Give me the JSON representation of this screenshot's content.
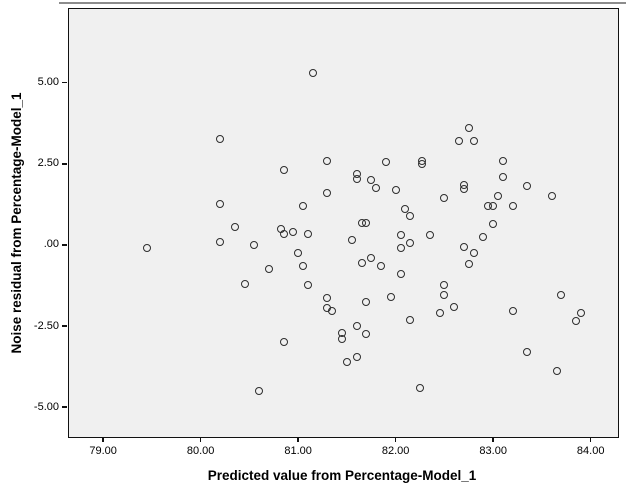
{
  "figure": {
    "background": "#ffffff",
    "plot_background": "#f0f0f0",
    "frame_color": "#111111",
    "point_color": "#2e2e2e",
    "top_rule_color": "#8c8c8c"
  },
  "chart_data": {
    "type": "scatter",
    "title": "",
    "xlabel": "Predicted value from Percentage-Model_1",
    "ylabel": "Noise residual from Percentage-Model_1",
    "xlim": [
      78.65,
      84.28
    ],
    "ylim": [
      -5.92,
      7.27
    ],
    "grid": false,
    "legend": null,
    "marker": "open-circle",
    "x_ticks": [
      {
        "value": 79,
        "label": "79.00"
      },
      {
        "value": 80,
        "label": "80.00"
      },
      {
        "value": 81,
        "label": "81.00"
      },
      {
        "value": 82,
        "label": "82.00"
      },
      {
        "value": 83,
        "label": "83.00"
      },
      {
        "value": 84,
        "label": "84.00"
      }
    ],
    "y_ticks": [
      {
        "value": 5,
        "label": "5.00"
      },
      {
        "value": 2.5,
        "label": "2.50"
      },
      {
        "value": 0,
        "label": ".00"
      },
      {
        "value": -2.5,
        "label": "-2.50"
      },
      {
        "value": -5,
        "label": "-5.00"
      }
    ],
    "points": [
      [
        81.15,
        5.3
      ],
      [
        80.2,
        3.25
      ],
      [
        82.75,
        3.6
      ],
      [
        82.65,
        3.2
      ],
      [
        82.8,
        3.2
      ],
      [
        80.85,
        2.3
      ],
      [
        81.3,
        2.6
      ],
      [
        81.9,
        2.55
      ],
      [
        82.27,
        2.6
      ],
      [
        82.27,
        2.48
      ],
      [
        83.1,
        2.6
      ],
      [
        81.6,
        2.18
      ],
      [
        81.6,
        2.02
      ],
      [
        81.75,
        2.0
      ],
      [
        81.8,
        1.75
      ],
      [
        82.0,
        1.7
      ],
      [
        83.1,
        2.1
      ],
      [
        82.7,
        1.85
      ],
      [
        82.7,
        1.73
      ],
      [
        83.35,
        1.8
      ],
      [
        82.5,
        1.45
      ],
      [
        83.05,
        1.52
      ],
      [
        83.6,
        1.5
      ],
      [
        81.3,
        1.6
      ],
      [
        80.2,
        1.26
      ],
      [
        81.05,
        1.2
      ],
      [
        82.95,
        1.2
      ],
      [
        83.0,
        1.2
      ],
      [
        83.2,
        1.2
      ],
      [
        82.1,
        1.1
      ],
      [
        82.15,
        0.9
      ],
      [
        83.0,
        0.65
      ],
      [
        80.35,
        0.55
      ],
      [
        80.2,
        0.1
      ],
      [
        80.55,
        0.0
      ],
      [
        80.82,
        0.5
      ],
      [
        80.85,
        0.35
      ],
      [
        80.95,
        0.4
      ],
      [
        81.1,
        0.35
      ],
      [
        79.45,
        -0.1
      ],
      [
        81.55,
        0.15
      ],
      [
        81.65,
        0.68
      ],
      [
        81.7,
        0.68
      ],
      [
        82.05,
        0.3
      ],
      [
        82.35,
        0.3
      ],
      [
        82.05,
        -0.1
      ],
      [
        82.15,
        0.05
      ],
      [
        82.9,
        0.25
      ],
      [
        82.7,
        -0.05
      ],
      [
        82.8,
        -0.25
      ],
      [
        81.0,
        -0.25
      ],
      [
        81.05,
        -0.65
      ],
      [
        80.7,
        -0.75
      ],
      [
        81.65,
        -0.55
      ],
      [
        81.75,
        -0.4
      ],
      [
        81.85,
        -0.65
      ],
      [
        82.05,
        -0.9
      ],
      [
        82.75,
        -0.6
      ],
      [
        80.45,
        -1.2
      ],
      [
        81.1,
        -1.25
      ],
      [
        81.3,
        -1.65
      ],
      [
        81.3,
        -1.95
      ],
      [
        81.35,
        -2.05
      ],
      [
        81.7,
        -1.75
      ],
      [
        81.95,
        -1.6
      ],
      [
        82.15,
        -2.3
      ],
      [
        82.5,
        -1.25
      ],
      [
        82.5,
        -1.55
      ],
      [
        82.6,
        -1.9
      ],
      [
        82.45,
        -2.1
      ],
      [
        83.2,
        -2.05
      ],
      [
        83.7,
        -1.55
      ],
      [
        83.9,
        -2.1
      ],
      [
        83.85,
        -2.35
      ],
      [
        81.6,
        -2.5
      ],
      [
        81.7,
        -2.75
      ],
      [
        81.45,
        -2.7
      ],
      [
        81.45,
        -2.9
      ],
      [
        80.85,
        -3.0
      ],
      [
        81.6,
        -3.45
      ],
      [
        81.5,
        -3.6
      ],
      [
        83.35,
        -3.3
      ],
      [
        83.65,
        -3.9
      ],
      [
        80.6,
        -4.5
      ],
      [
        82.25,
        -4.4
      ]
    ]
  }
}
